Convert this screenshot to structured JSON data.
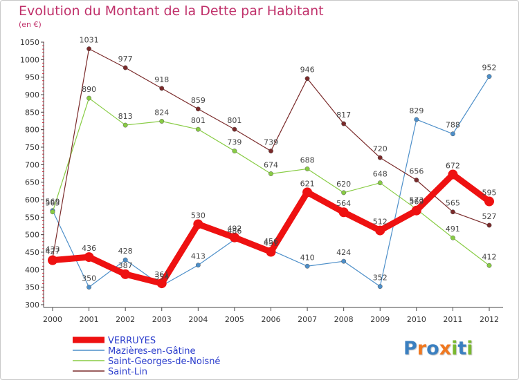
{
  "title": "Evolution du Montant de la Dette par Habitant",
  "subtitle": "(en €)",
  "logo": {
    "letters": [
      "P",
      "r",
      "o",
      "x",
      "i",
      "t",
      "i"
    ],
    "colors": [
      "#3a7fc0",
      "#f07820",
      "#3a7fc0",
      "#f07820",
      "#7ab830",
      "#3a7fc0",
      "#7ab830"
    ]
  },
  "chart_data": {
    "type": "line",
    "title": "Evolution du Montant de la Dette par Habitant",
    "ylabel": "(en €)",
    "xlabel": "",
    "x": [
      "2000",
      "2001",
      "2002",
      "2003",
      "2004",
      "2005",
      "2006",
      "2007",
      "2008",
      "2009",
      "2010",
      "2011",
      "2012"
    ],
    "ylim": [
      300,
      1050
    ],
    "yticks": [
      300,
      350,
      400,
      450,
      500,
      550,
      600,
      650,
      700,
      750,
      800,
      850,
      900,
      950,
      1000,
      1050
    ],
    "grid": false,
    "legend_position": "bottom-left",
    "series": [
      {
        "name": "VERRUYES",
        "color": "#ee1111",
        "emphasis": true,
        "values": [
          427,
          436,
          387,
          361,
          530,
          492,
          451,
          621,
          564,
          512,
          569,
          672,
          595
        ]
      },
      {
        "name": "Mazières-en-Gâtine",
        "color": "#4d8fc9",
        "emphasis": false,
        "values": [
          569,
          350,
          428,
          354,
          413,
          486,
          456,
          410,
          424,
          352,
          829,
          788,
          952
        ]
      },
      {
        "name": "Saint-Georges-de-Noisné",
        "color": "#88cc44",
        "emphasis": false,
        "values": [
          565,
          890,
          813,
          824,
          801,
          739,
          674,
          688,
          620,
          648,
          573,
          491,
          412
        ]
      },
      {
        "name": "Saint-Lin",
        "color": "#7a2a2a",
        "emphasis": false,
        "values": [
          433,
          1031,
          977,
          918,
          859,
          801,
          739,
          946,
          817,
          720,
          656,
          565,
          527
        ]
      }
    ]
  }
}
